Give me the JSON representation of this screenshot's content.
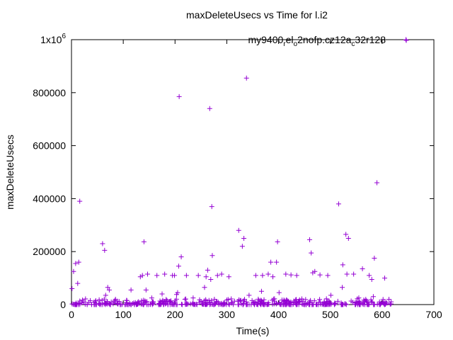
{
  "chart_data": {
    "type": "scatter",
    "title": "maxDeleteUsecs vs Time for l.i2",
    "xlabel": "Time(s)",
    "ylabel": "maxDeleteUsecs",
    "xlim": [
      0,
      700
    ],
    "ylim": [
      0,
      1000000
    ],
    "x_ticks": [
      0,
      100,
      200,
      300,
      400,
      500,
      600,
      700
    ],
    "y_ticks": [
      {
        "value": 0,
        "label": "0"
      },
      {
        "value": 200000,
        "label": "200000"
      },
      {
        "value": 400000,
        "label": "400000"
      },
      {
        "value": 600000,
        "label": "600000"
      },
      {
        "value": 800000,
        "label": "800000"
      },
      {
        "value": 1000000,
        "label": "1x10",
        "sup": "6"
      }
    ],
    "grid": false,
    "legend_position": "top-right",
    "series": [
      {
        "name": "my9400_rel_o2nofp.cz12a_c32r128",
        "name_display": [
          {
            "t": "my9400",
            "sub": false
          },
          {
            "t": "r",
            "sub": true
          },
          {
            "t": "el",
            "sub": false
          },
          {
            "t": "o",
            "sub": true
          },
          {
            "t": "2nofp.cz12a",
            "sub": false
          },
          {
            "t": "c",
            "sub": true
          },
          {
            "t": "32r128",
            "sub": false
          }
        ],
        "color": "#9400d3",
        "marker": "plus",
        "points": [
          [
            1,
            60000
          ],
          [
            4,
            125000
          ],
          [
            8,
            155000
          ],
          [
            12,
            80000
          ],
          [
            14,
            160000
          ],
          [
            16,
            390000
          ],
          [
            60,
            230000
          ],
          [
            64,
            205000
          ],
          [
            66,
            35000
          ],
          [
            70,
            65000
          ],
          [
            73,
            55000
          ],
          [
            85,
            20000
          ],
          [
            115,
            55000
          ],
          [
            128,
            8000
          ],
          [
            133,
            105000
          ],
          [
            137,
            110000
          ],
          [
            140,
            237000
          ],
          [
            144,
            55000
          ],
          [
            147,
            115000
          ],
          [
            155,
            25000
          ],
          [
            165,
            110000
          ],
          [
            175,
            40000
          ],
          [
            180,
            115000
          ],
          [
            195,
            110000
          ],
          [
            199,
            110000
          ],
          [
            203,
            38000
          ],
          [
            205,
            45000
          ],
          [
            207,
            145000
          ],
          [
            208,
            785000
          ],
          [
            212,
            180000
          ],
          [
            222,
            110000
          ],
          [
            235,
            25000
          ],
          [
            245,
            110000
          ],
          [
            257,
            65000
          ],
          [
            260,
            105000
          ],
          [
            263,
            130000
          ],
          [
            267,
            740000
          ],
          [
            269,
            95000
          ],
          [
            271,
            370000
          ],
          [
            272,
            185000
          ],
          [
            276,
            20000
          ],
          [
            282,
            110000
          ],
          [
            290,
            115000
          ],
          [
            304,
            105000
          ],
          [
            323,
            280000
          ],
          [
            330,
            220000
          ],
          [
            333,
            250000
          ],
          [
            338,
            855000
          ],
          [
            343,
            35000
          ],
          [
            356,
            110000
          ],
          [
            367,
            50000
          ],
          [
            369,
            110000
          ],
          [
            380,
            115000
          ],
          [
            385,
            160000
          ],
          [
            389,
            105000
          ],
          [
            396,
            160000
          ],
          [
            398,
            237000
          ],
          [
            401,
            45000
          ],
          [
            414,
            115000
          ],
          [
            424,
            112000
          ],
          [
            435,
            110000
          ],
          [
            441,
            10000
          ],
          [
            460,
            245000
          ],
          [
            463,
            195000
          ],
          [
            466,
            120000
          ],
          [
            470,
            125000
          ],
          [
            480,
            112000
          ],
          [
            488,
            10000
          ],
          [
            495,
            110000
          ],
          [
            501,
            35000
          ],
          [
            516,
            380000
          ],
          [
            523,
            65000
          ],
          [
            524,
            150000
          ],
          [
            530,
            265000
          ],
          [
            532,
            115000
          ],
          [
            535,
            250000
          ],
          [
            545,
            115000
          ],
          [
            555,
            25000
          ],
          [
            562,
            135000
          ],
          [
            575,
            110000
          ],
          [
            580,
            95000
          ],
          [
            583,
            30000
          ],
          [
            585,
            175000
          ],
          [
            590,
            460000
          ],
          [
            595,
            10000
          ],
          [
            605,
            100000
          ],
          [
            646,
            1000000
          ]
        ],
        "baseline_band": {
          "x_range": [
            0,
            620
          ],
          "y_range": [
            0,
            22000
          ],
          "count": 460
        }
      }
    ]
  }
}
